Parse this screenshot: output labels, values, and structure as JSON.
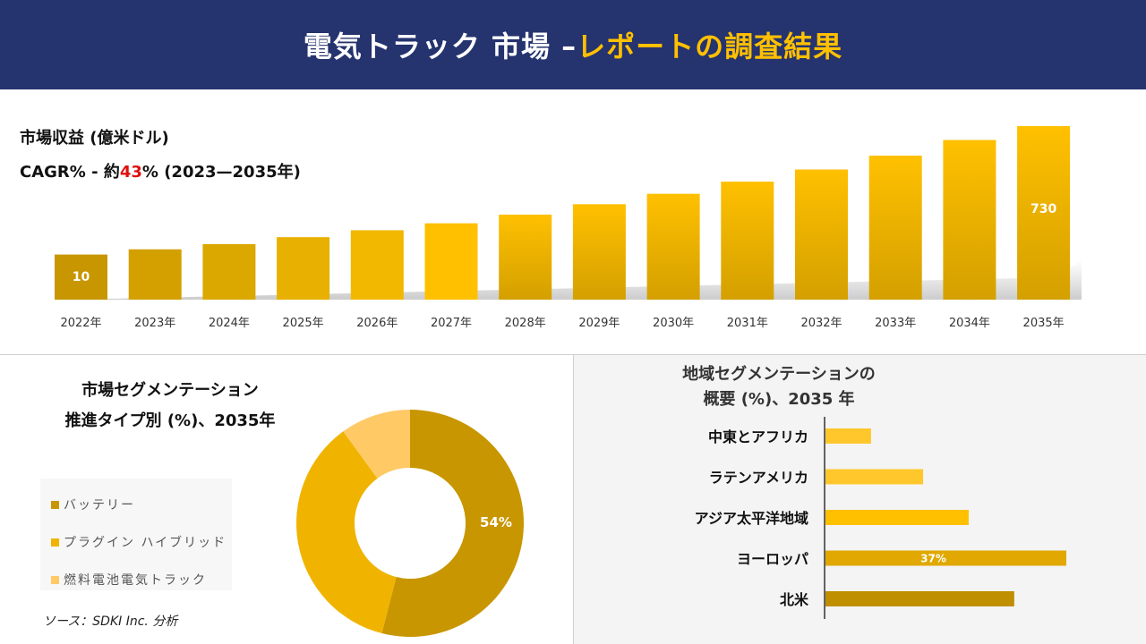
{
  "header": {
    "title_main": "電気トラック 市場 –",
    "title_accent": "レポートの調査結果"
  },
  "revenue": {
    "title": "市場収益 (億米ドル)",
    "cagr_prefix": "CAGR% - 約",
    "cagr_value": "43",
    "cagr_suffix": "% (2023—2035年)"
  },
  "chart_data": [
    {
      "type": "bar",
      "categories": [
        "2022年",
        "2023年",
        "2024年",
        "2025年",
        "2026年",
        "2027年",
        "2028年",
        "2029年",
        "2030年",
        "2031年",
        "2032年",
        "2033年",
        "2034年",
        "2035年"
      ],
      "values": [
        10,
        null,
        null,
        null,
        null,
        null,
        null,
        null,
        null,
        null,
        null,
        null,
        null,
        730
      ],
      "data_labels": [
        "10",
        "",
        "",
        "",
        "",
        "",
        "",
        "",
        "",
        "",
        "",
        "",
        "",
        "730"
      ],
      "relative_heights": [
        0.26,
        0.29,
        0.32,
        0.36,
        0.4,
        0.44,
        0.49,
        0.55,
        0.61,
        0.68,
        0.75,
        0.83,
        0.92,
        1.0
      ],
      "colors": [
        "#c89600",
        "#d4a000",
        "#dba800",
        "#e8b000",
        "#f2b800",
        "#ffc000",
        "#fbbf00",
        "#fbbf00",
        "#fbbf00",
        "#fbbf00",
        "#fbbf00",
        "#fbbf00",
        "#fbbf00",
        "#fbbf00"
      ],
      "grid": false
    },
    {
      "type": "pie",
      "title": "市場セグメンテーション 推進タイプ別 (%)、2035年",
      "title_lines": [
        "市場セグメンテーション",
        "推進タイプ別 (%)、2035年"
      ],
      "labels": [
        "バッテリー",
        "プラグイン ハイブリッド",
        "燃料電池電気トラック"
      ],
      "values": [
        54,
        36,
        10
      ],
      "data_labels": [
        "54%",
        "",
        ""
      ],
      "colors": [
        "#c89600",
        "#f0b400",
        "#ffc966"
      ],
      "donut": true,
      "legend": "left"
    },
    {
      "type": "bar",
      "orientation": "horizontal",
      "title_lines": [
        "地域セグメンテーションの",
        "概要 (%)、2035 年"
      ],
      "categories": [
        "中東とアフリカ",
        "ラテンアメリカ",
        "アジア太平洋地域",
        "ヨーロッパ",
        "北米"
      ],
      "values": [
        7,
        15,
        22,
        37,
        29
      ],
      "data_labels": [
        "",
        "",
        "",
        "37%",
        ""
      ],
      "colors": [
        "#ffc72c",
        "#ffc72c",
        "#ffc000",
        "#e0a800",
        "#bf8f00"
      ]
    }
  ],
  "source": "ソース：SDKI Inc. 分析"
}
